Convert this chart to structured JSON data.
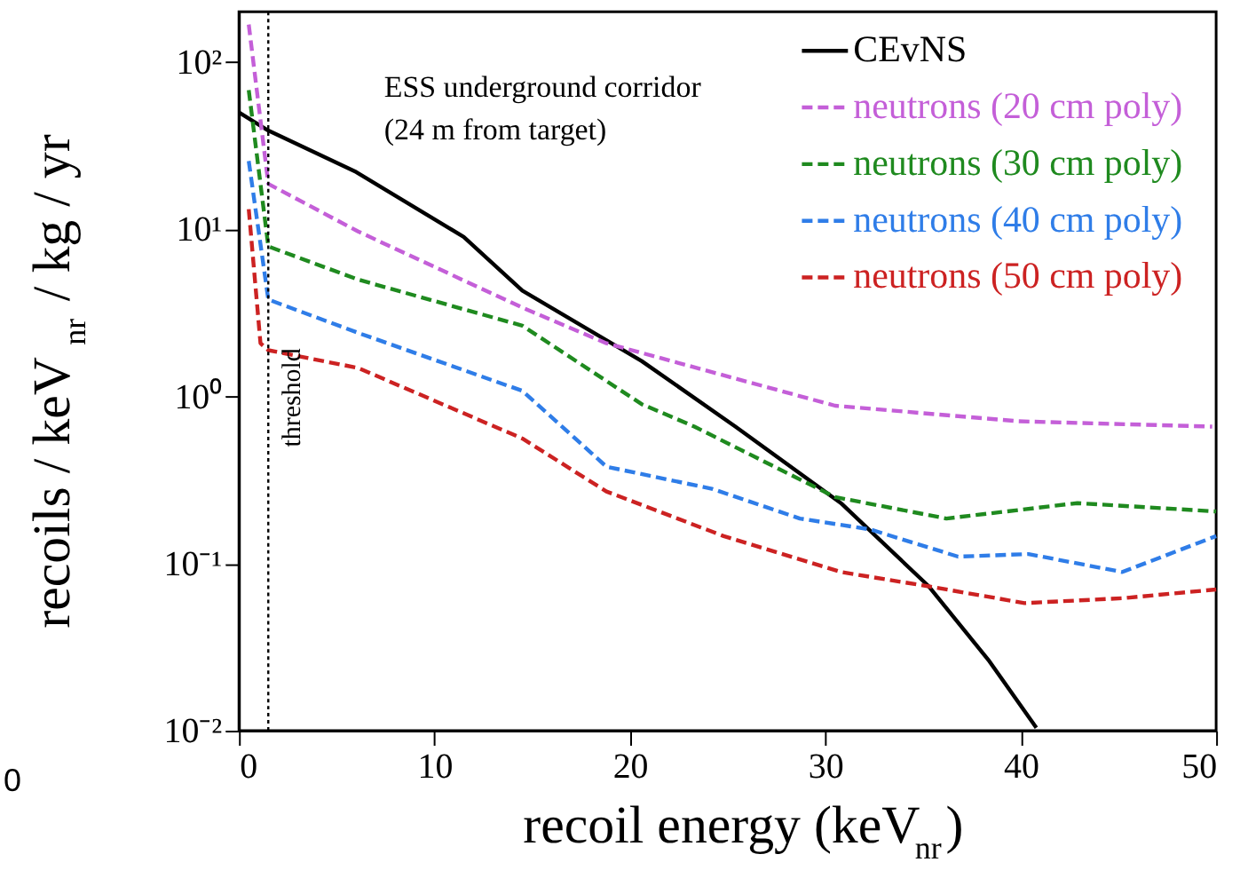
{
  "chart_data": {
    "type": "line",
    "xlabel": "recoil energy (keV$_{nr}$)",
    "ylabel": "recoils / keV$_{nr}$ / kg / yr",
    "xlim": [
      0,
      50
    ],
    "xticks": [
      0,
      10,
      20,
      30,
      40,
      50
    ],
    "ylim": [
      0.01,
      200
    ],
    "log": true,
    "yticks": [
      {
        "value": 0.01,
        "label": "10⁻²"
      },
      {
        "value": 0.1,
        "label": "10⁻¹"
      },
      {
        "value": 1,
        "label": "10⁰"
      },
      {
        "value": 10,
        "label": "10¹"
      },
      {
        "value": 100,
        "label": "10²"
      }
    ],
    "grid": false,
    "legend": "top right",
    "marker": "none",
    "series": [
      {
        "name": "CEvNS",
        "color": "#000000",
        "line_style": "solid",
        "x": [
          0,
          1.5,
          6,
          11.5,
          14.5,
          20.6,
          25.4,
          30.8,
          35.3,
          38.4,
          40.8
        ],
        "values": [
          50,
          39,
          22,
          9,
          4.3,
          1.63,
          0.66,
          0.23,
          0.073,
          0.026,
          0.0104
        ]
      },
      {
        "name": "neutrons (20 cm poly)",
        "color": "#c45fd8",
        "line_style": "dashed",
        "x": [
          0.5,
          1.5,
          6.1,
          14.5,
          18.8,
          30.5,
          39.9,
          49.8
        ],
        "values": [
          168,
          18.7,
          9.7,
          3.4,
          2.08,
          0.88,
          0.71,
          0.66
        ]
      },
      {
        "name": "neutrons (30 cm poly)",
        "color": "#1f8a1f",
        "line_style": "dashed",
        "x": [
          0.5,
          1.5,
          6.1,
          14.5,
          20.6,
          23.3,
          30.5,
          36.2,
          42.9,
          50
        ],
        "values": [
          68,
          7.9,
          5.0,
          2.65,
          0.9,
          0.66,
          0.25,
          0.186,
          0.23,
          0.205
        ]
      },
      {
        "name": "neutrons (40 cm poly)",
        "color": "#2f7de8",
        "line_style": "dashed",
        "x": [
          0.5,
          1.5,
          6.1,
          14.5,
          18.8,
          24.2,
          28.7,
          32.3,
          36.8,
          40.4,
          45.2,
          50
        ],
        "values": [
          25.6,
          3.8,
          2.4,
          1.08,
          0.38,
          0.28,
          0.186,
          0.16,
          0.11,
          0.114,
          0.089,
          0.146
        ]
      },
      {
        "name": "neutrons (50 cm poly)",
        "color": "#cc2222",
        "line_style": "dashed",
        "x": [
          0.5,
          1.1,
          1.5,
          6.1,
          14.5,
          18.8,
          24.8,
          30.8,
          35.3,
          40.2,
          45.2,
          50
        ],
        "values": [
          13.2,
          2.08,
          1.89,
          1.48,
          0.56,
          0.27,
          0.146,
          0.089,
          0.073,
          0.058,
          0.062,
          0.07
        ]
      }
    ],
    "ref_lines": [
      {
        "axis": "x",
        "value": 1.5,
        "label": "threshold",
        "color": "#000000",
        "line_style": "dotted"
      }
    ],
    "annotations": [
      "ESS underground corridor\n(24 m from target)",
      "0"
    ]
  }
}
